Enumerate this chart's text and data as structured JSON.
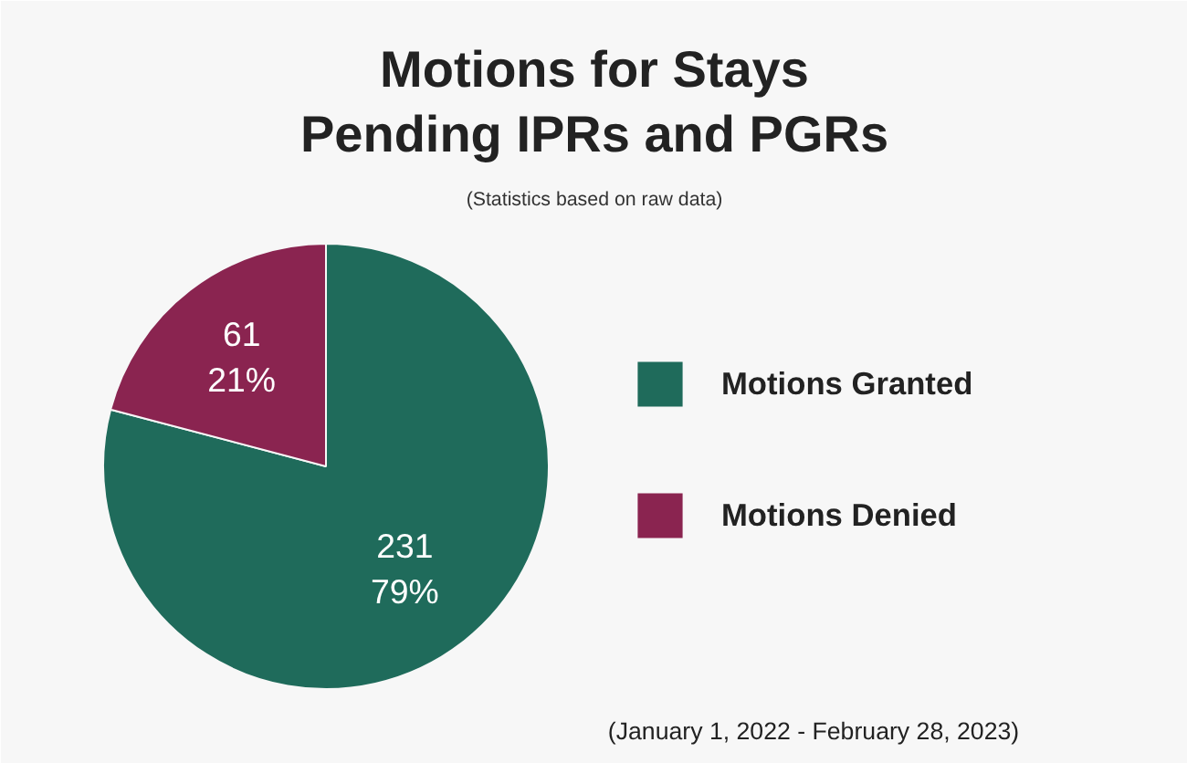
{
  "chart_data": {
    "type": "pie",
    "title": "Motions for Stays Pending IPRs and PGRs",
    "subtitle": "(Statistics based on raw data)",
    "categories": [
      "Motions Granted",
      "Motions Denied"
    ],
    "values": [
      231,
      61
    ],
    "colors": [
      "#1f6b5b",
      "#8a2450"
    ],
    "value_labels": [
      "231\n79%",
      "61\n21%"
    ],
    "legend": "right",
    "annotations": [
      "(January 1, 2022 - February 28, 2023)"
    ]
  }
}
